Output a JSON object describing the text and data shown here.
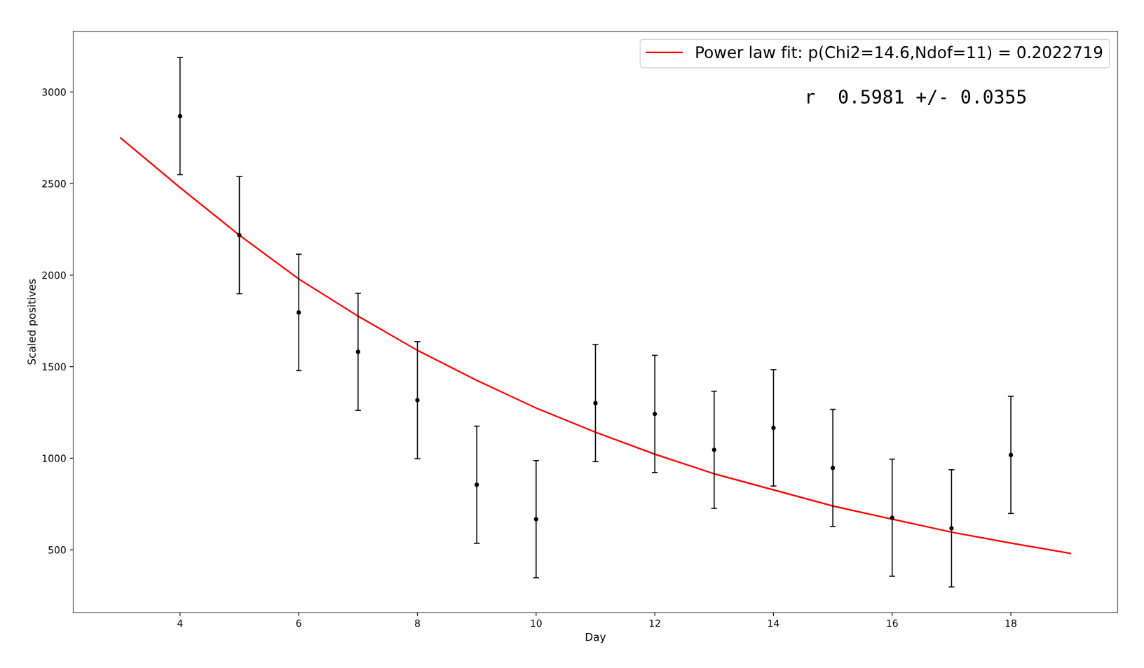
{
  "chart_data": {
    "type": "scatter",
    "xlabel": "Day",
    "ylabel": "Scaled positives",
    "xlim": [
      2.2,
      19.8
    ],
    "ylim": [
      157,
      3331
    ],
    "xticks": [
      4,
      6,
      8,
      10,
      12,
      14,
      16,
      18
    ],
    "yticks": [
      500,
      1000,
      1500,
      2000,
      2500,
      3000
    ],
    "grid": false,
    "legend": "top right",
    "annotations": [
      "r  0.5981 +/- 0.0355"
    ],
    "series": [
      {
        "color": "#000000",
        "marker": "circle",
        "x": [
          4,
          5,
          6,
          7,
          8,
          9,
          10,
          11,
          12,
          13,
          14,
          15,
          16,
          17,
          18
        ],
        "values": [
          2868,
          2218,
          1796,
          1581,
          1317,
          855,
          667,
          1301,
          1242,
          1046,
          1166,
          947,
          675,
          617,
          1018
        ],
        "errors": [
          320,
          320,
          318,
          320,
          320,
          320,
          320,
          320,
          320,
          320,
          318,
          320,
          320,
          320,
          320
        ]
      },
      {
        "type": "line",
        "name": "Power law fit: p(Chi2=14.6,Ndof=11) = 0.2022719",
        "color": "#ff0000",
        "line_style": "solid",
        "x": [
          3,
          4,
          5,
          6,
          7,
          8,
          9,
          10,
          11,
          12,
          13,
          14,
          15,
          16,
          17,
          18,
          19
        ],
        "values": [
          2749,
          2478,
          2218,
          1979,
          1776,
          1589,
          1425,
          1274,
          1142,
          1022,
          915,
          827,
          739,
          667,
          596,
          536,
          480
        ]
      }
    ]
  }
}
